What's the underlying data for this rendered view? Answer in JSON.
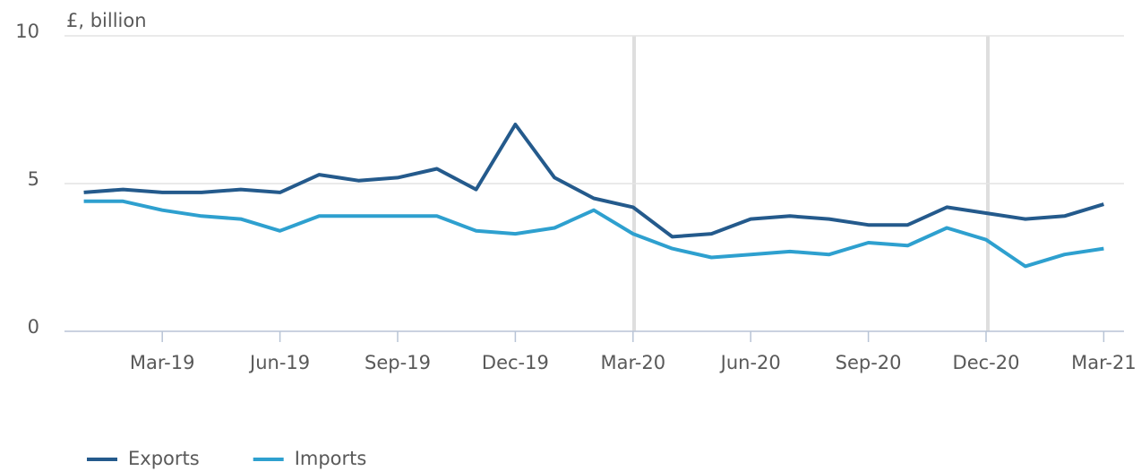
{
  "chart_data": {
    "type": "line",
    "y_label": "£, billion",
    "categories": [
      null,
      null,
      "Mar-19",
      null,
      null,
      "Jun-19",
      null,
      null,
      "Sep-19",
      null,
      null,
      "Dec-19",
      null,
      null,
      "Mar-20",
      null,
      null,
      "Jun-20",
      null,
      null,
      "Sep-20",
      null,
      null,
      "Dec-20",
      null,
      null,
      "Mar-21"
    ],
    "series": [
      {
        "name": "Exports",
        "color": "#245a8c",
        "values": [
          4.7,
          4.8,
          4.7,
          4.7,
          4.8,
          4.7,
          5.3,
          5.1,
          5.2,
          5.5,
          4.8,
          7.0,
          5.2,
          4.5,
          4.2,
          3.2,
          3.3,
          3.8,
          3.9,
          3.8,
          3.6,
          3.6,
          4.2,
          4.0,
          3.8,
          3.9,
          4.3
        ]
      },
      {
        "name": "Imports",
        "color": "#2ea0cf",
        "values": [
          4.4,
          4.4,
          4.1,
          3.9,
          3.8,
          3.4,
          3.9,
          3.9,
          3.9,
          3.9,
          3.4,
          3.3,
          3.5,
          4.1,
          3.3,
          2.8,
          2.5,
          2.6,
          2.7,
          2.6,
          3.0,
          2.9,
          3.5,
          3.1,
          2.2,
          2.6,
          2.8
        ]
      }
    ],
    "ylim": [
      0,
      10
    ],
    "yticks": [
      0,
      5,
      10
    ],
    "grid": true
  }
}
